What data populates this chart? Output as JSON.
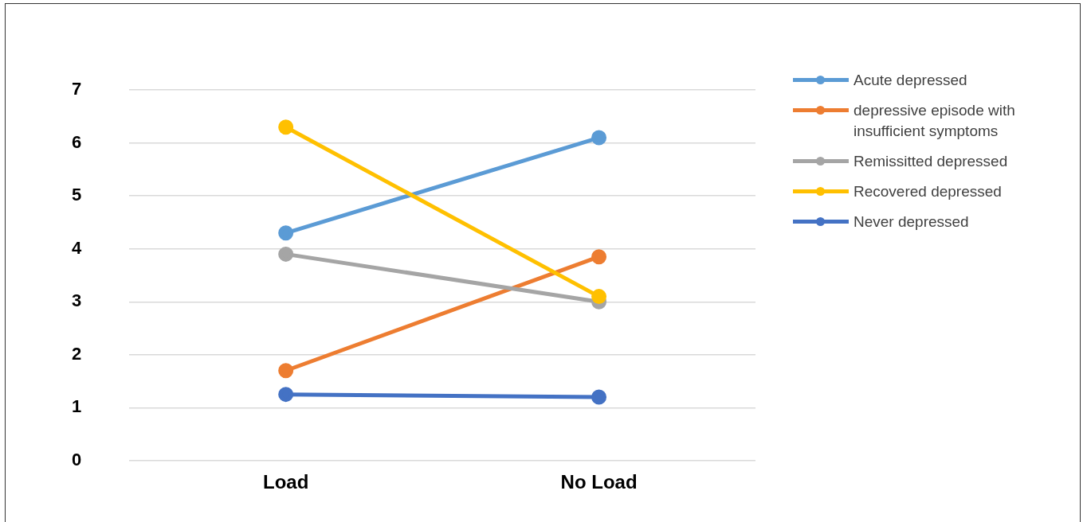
{
  "chart_data": {
    "type": "line",
    "categories": [
      "Load",
      "No Load"
    ],
    "series": [
      {
        "name": "Acute depressed",
        "color": "#5b9bd5",
        "values": [
          4.3,
          6.1
        ]
      },
      {
        "name": "depressive episode with insufficient symptoms",
        "color": "#ed7d31",
        "values": [
          1.7,
          3.85
        ]
      },
      {
        "name": "Remissitted depressed",
        "color": "#a5a5a5",
        "values": [
          3.9,
          3.0
        ]
      },
      {
        "name": "Recovered depressed",
        "color": "#ffc000",
        "values": [
          6.3,
          3.1
        ]
      },
      {
        "name": "Never depressed",
        "color": "#4472c4",
        "values": [
          1.25,
          1.2
        ]
      }
    ],
    "ylim": [
      0,
      7
    ],
    "yticks": [
      0,
      1,
      2,
      3,
      4,
      5,
      6,
      7
    ],
    "grid": "y",
    "legend": "right",
    "marker": "circle",
    "line_style": "solid"
  }
}
